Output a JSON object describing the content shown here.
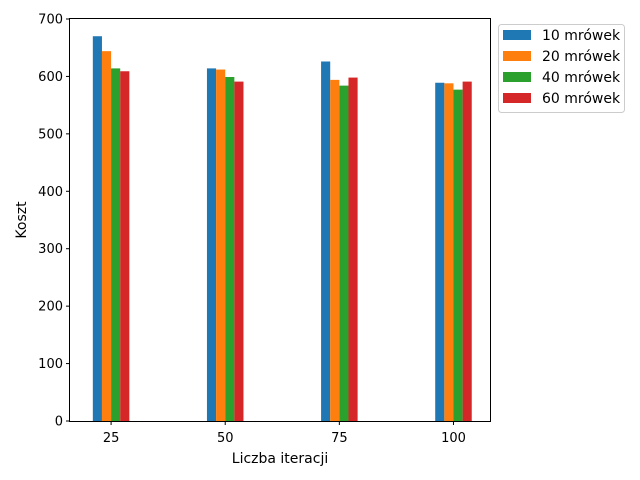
{
  "chart_data": {
    "type": "bar",
    "xlabel": "Liczba iteracji",
    "ylabel": "Koszt",
    "categories": [
      "25",
      "50",
      "75",
      "100"
    ],
    "x": [
      25,
      50,
      75,
      100
    ],
    "xlim": [
      16,
      108
    ],
    "ylim": [
      0,
      700
    ],
    "yticks": [
      0,
      100,
      200,
      300,
      400,
      500,
      600,
      700
    ],
    "grid": false,
    "legend_position": "outside-top-right",
    "series": [
      {
        "name": "10 mrówek",
        "color": "#1f77b4",
        "values": [
          670,
          614,
          626,
          589
        ]
      },
      {
        "name": "20 mrówek",
        "color": "#ff7f0e",
        "values": [
          644,
          612,
          594,
          588
        ]
      },
      {
        "name": "40 mrówek",
        "color": "#2ca02c",
        "values": [
          614,
          599,
          584,
          577
        ]
      },
      {
        "name": "60 mrówek",
        "color": "#d62728",
        "values": [
          609,
          591,
          598,
          591
        ]
      }
    ]
  }
}
